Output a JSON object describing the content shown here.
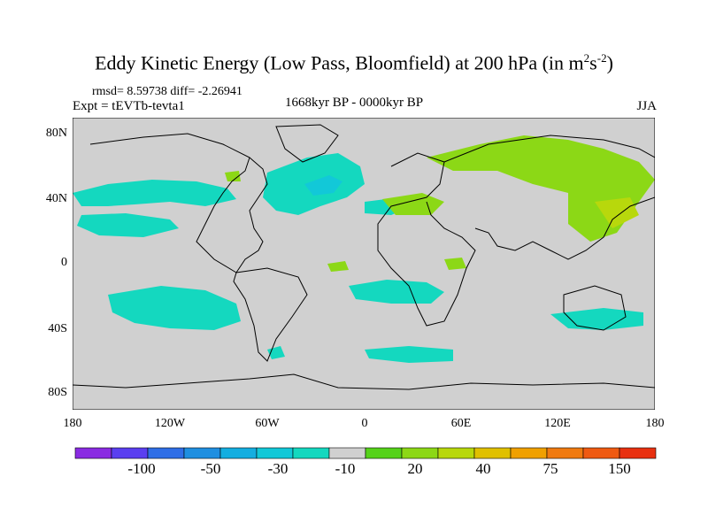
{
  "header": {
    "title_main": "Eddy Kinetic Energy (Low Pass, Bloomfield) at 200 hPa (in m",
    "title_sup1": "2",
    "title_mid": "s",
    "title_sup2": "-2",
    "title_end": ")",
    "stats": "rmsd= 8.59738 diff= -2.26941",
    "experiment": "Expt = tEVTb-tevta1",
    "period": "1668kyr BP - 0000kyr BP",
    "season": "JJA"
  },
  "axes": {
    "y_ticks": [
      "80N",
      "40N",
      "0",
      "40S",
      "80S"
    ],
    "x_ticks": [
      "180",
      "120W",
      "60W",
      "0",
      "60E",
      "120E",
      "180"
    ]
  },
  "colorbar": {
    "colors": [
      "#8a2be2",
      "#5a3ff0",
      "#2f6ee6",
      "#1f8fe0",
      "#14aee0",
      "#12c8d8",
      "#14d8bf",
      "#d0d0d0",
      "#55d21a",
      "#8cd816",
      "#b8d80c",
      "#e0c000",
      "#f0a000",
      "#f07a10",
      "#ef5a12",
      "#e83010"
    ],
    "labels": [
      "-100",
      "-50",
      "-30",
      "-10",
      "20",
      "40",
      "75",
      "150"
    ]
  },
  "chart_data": {
    "type": "heatmap",
    "title": "Eddy Kinetic Energy (Low Pass, Bloomfield) at 200 hPa (in m2s-2)",
    "xlim": [
      -180,
      180
    ],
    "ylim": [
      -90,
      90
    ],
    "levels": [
      -100,
      -50,
      -30,
      -10,
      20,
      40,
      75,
      150
    ],
    "background_color": "#d0d0d0",
    "anomaly_regions": [
      {
        "name": "north-pacific-east",
        "lon": -140,
        "lat": 38,
        "level": -10
      },
      {
        "name": "north-atlantic",
        "lon": -45,
        "lat": 47,
        "level": -10
      },
      {
        "name": "europe",
        "lon": 10,
        "lat": 40,
        "level": 20
      },
      {
        "name": "eurasia-north",
        "lon": 75,
        "lat": 62,
        "level": 20
      },
      {
        "name": "east-asia",
        "lon": 135,
        "lat": 45,
        "level": 20
      },
      {
        "name": "tropical-atlantic",
        "lon": -15,
        "lat": 0,
        "level": 20
      },
      {
        "name": "south-pacific",
        "lon": -140,
        "lat": -33,
        "level": -10
      },
      {
        "name": "south-atlantic",
        "lon": 0,
        "lat": -30,
        "level": -10
      },
      {
        "name": "australia-south",
        "lon": 140,
        "lat": -40,
        "level": -10
      }
    ]
  }
}
